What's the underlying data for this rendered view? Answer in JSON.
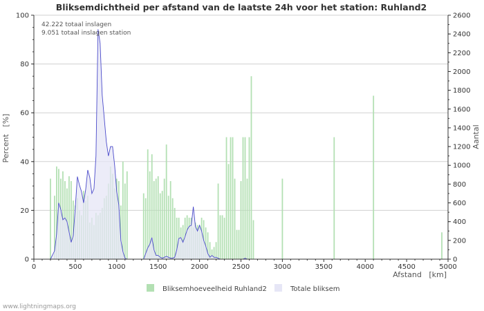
{
  "chart_data": {
    "type": "bar",
    "title": "Bliksemdichtheid per afstand van de laatste 24h voor het station: Ruhland2",
    "annotations": [
      "42.222 totaal inslagen",
      "9.051 totaal inslagen station"
    ],
    "xlabel": "Afstand   [km]",
    "ylabel_left": "Percent   [%]",
    "ylabel_right": "Aantal",
    "xlim": [
      0,
      5000
    ],
    "ylim_left": [
      0,
      100
    ],
    "ylim_right": [
      0,
      2600
    ],
    "x_ticks": [
      "0",
      "500",
      "1000",
      "1500",
      "2000",
      "2500",
      "3000",
      "3500",
      "4000",
      "4500",
      "5000"
    ],
    "y_ticks_left": [
      "0",
      "20",
      "40",
      "60",
      "80",
      "100"
    ],
    "y_ticks_right": [
      "0",
      "200",
      "400",
      "600",
      "800",
      "1000",
      "1200",
      "1400",
      "1600",
      "1800",
      "2000",
      "2200",
      "2400",
      "2600"
    ],
    "grid": true,
    "legend_position": "bottom",
    "bar_width_km": 25,
    "series": [
      {
        "name": "Bliksemhoeveelheid Ruhland2",
        "axis": "left",
        "color": "#b3e0b3",
        "points": [
          [
            200,
            33
          ],
          [
            250,
            26
          ],
          [
            275,
            38
          ],
          [
            300,
            37
          ],
          [
            325,
            33
          ],
          [
            350,
            36
          ],
          [
            375,
            32
          ],
          [
            400,
            29
          ],
          [
            425,
            34
          ],
          [
            450,
            32
          ],
          [
            475,
            24
          ],
          [
            500,
            22
          ],
          [
            525,
            25
          ],
          [
            550,
            20
          ],
          [
            575,
            18
          ],
          [
            600,
            28
          ],
          [
            625,
            24
          ],
          [
            650,
            26
          ],
          [
            675,
            15
          ],
          [
            700,
            17
          ],
          [
            725,
            14
          ],
          [
            750,
            19
          ],
          [
            775,
            18
          ],
          [
            800,
            19
          ],
          [
            825,
            21
          ],
          [
            850,
            25
          ],
          [
            875,
            26
          ],
          [
            900,
            31
          ],
          [
            925,
            38
          ],
          [
            950,
            35
          ],
          [
            975,
            29
          ],
          [
            1000,
            33
          ],
          [
            1025,
            32
          ],
          [
            1050,
            22
          ],
          [
            1075,
            40
          ],
          [
            1100,
            31
          ],
          [
            1125,
            36
          ],
          [
            1325,
            27
          ],
          [
            1350,
            25
          ],
          [
            1375,
            45
          ],
          [
            1400,
            36
          ],
          [
            1425,
            43
          ],
          [
            1450,
            32
          ],
          [
            1475,
            33
          ],
          [
            1500,
            34
          ],
          [
            1525,
            27
          ],
          [
            1550,
            28
          ],
          [
            1575,
            33
          ],
          [
            1600,
            47
          ],
          [
            1625,
            26
          ],
          [
            1650,
            32
          ],
          [
            1675,
            25
          ],
          [
            1700,
            21
          ],
          [
            1725,
            17
          ],
          [
            1750,
            17
          ],
          [
            1775,
            13
          ],
          [
            1800,
            14
          ],
          [
            1825,
            17
          ],
          [
            1850,
            18
          ],
          [
            1875,
            17
          ],
          [
            1900,
            17
          ],
          [
            1925,
            13
          ],
          [
            1950,
            15
          ],
          [
            1975,
            14
          ],
          [
            2000,
            14
          ],
          [
            2025,
            17
          ],
          [
            2050,
            16
          ],
          [
            2075,
            13
          ],
          [
            2100,
            11
          ],
          [
            2125,
            7
          ],
          [
            2150,
            4
          ],
          [
            2175,
            5
          ],
          [
            2200,
            7
          ],
          [
            2225,
            31
          ],
          [
            2250,
            18
          ],
          [
            2275,
            18
          ],
          [
            2300,
            17
          ],
          [
            2325,
            50
          ],
          [
            2350,
            39
          ],
          [
            2375,
            50
          ],
          [
            2400,
            50
          ],
          [
            2425,
            33
          ],
          [
            2450,
            12
          ],
          [
            2475,
            12
          ],
          [
            2500,
            32
          ],
          [
            2525,
            50
          ],
          [
            2550,
            50
          ],
          [
            2575,
            33
          ],
          [
            2600,
            50
          ],
          [
            2625,
            75
          ],
          [
            2650,
            16
          ],
          [
            3000,
            33
          ],
          [
            3625,
            50
          ],
          [
            4100,
            67
          ],
          [
            4925,
            11
          ]
        ]
      },
      {
        "name": "Totale bliksem",
        "axis": "right",
        "color": "#e6e6f6",
        "line_color": "#4a4aca",
        "points": [
          [
            0,
            0
          ],
          [
            200,
            0
          ],
          [
            250,
            90
          ],
          [
            275,
            270
          ],
          [
            300,
            600
          ],
          [
            325,
            530
          ],
          [
            350,
            420
          ],
          [
            375,
            440
          ],
          [
            400,
            400
          ],
          [
            425,
            290
          ],
          [
            450,
            180
          ],
          [
            475,
            250
          ],
          [
            500,
            550
          ],
          [
            525,
            880
          ],
          [
            550,
            790
          ],
          [
            575,
            720
          ],
          [
            600,
            600
          ],
          [
            625,
            740
          ],
          [
            650,
            950
          ],
          [
            675,
            870
          ],
          [
            700,
            700
          ],
          [
            725,
            750
          ],
          [
            750,
            1100
          ],
          [
            775,
            2450
          ],
          [
            800,
            2300
          ],
          [
            825,
            1750
          ],
          [
            850,
            1500
          ],
          [
            875,
            1250
          ],
          [
            900,
            1100
          ],
          [
            925,
            1200
          ],
          [
            950,
            1200
          ],
          [
            975,
            1000
          ],
          [
            1000,
            720
          ],
          [
            1025,
            580
          ],
          [
            1050,
            200
          ],
          [
            1075,
            80
          ],
          [
            1100,
            10
          ],
          [
            1125,
            0
          ],
          [
            1325,
            0
          ],
          [
            1350,
            60
          ],
          [
            1375,
            120
          ],
          [
            1400,
            160
          ],
          [
            1425,
            230
          ],
          [
            1450,
            100
          ],
          [
            1475,
            40
          ],
          [
            1500,
            40
          ],
          [
            1525,
            20
          ],
          [
            1550,
            10
          ],
          [
            1575,
            20
          ],
          [
            1600,
            30
          ],
          [
            1625,
            20
          ],
          [
            1650,
            10
          ],
          [
            1675,
            10
          ],
          [
            1700,
            20
          ],
          [
            1725,
            100
          ],
          [
            1750,
            220
          ],
          [
            1775,
            230
          ],
          [
            1800,
            180
          ],
          [
            1825,
            240
          ],
          [
            1850,
            310
          ],
          [
            1875,
            350
          ],
          [
            1900,
            360
          ],
          [
            1925,
            560
          ],
          [
            1950,
            350
          ],
          [
            1975,
            300
          ],
          [
            2000,
            360
          ],
          [
            2025,
            300
          ],
          [
            2050,
            200
          ],
          [
            2075,
            140
          ],
          [
            2100,
            60
          ],
          [
            2125,
            20
          ],
          [
            2150,
            40
          ],
          [
            2175,
            20
          ],
          [
            2200,
            20
          ],
          [
            2225,
            10
          ],
          [
            2250,
            0
          ],
          [
            2500,
            0
          ],
          [
            2525,
            0
          ],
          [
            2550,
            10
          ],
          [
            2575,
            0
          ],
          [
            2600,
            0
          ],
          [
            5000,
            0
          ]
        ]
      }
    ]
  },
  "footer": {
    "credit": "www.lightningmaps.org"
  }
}
